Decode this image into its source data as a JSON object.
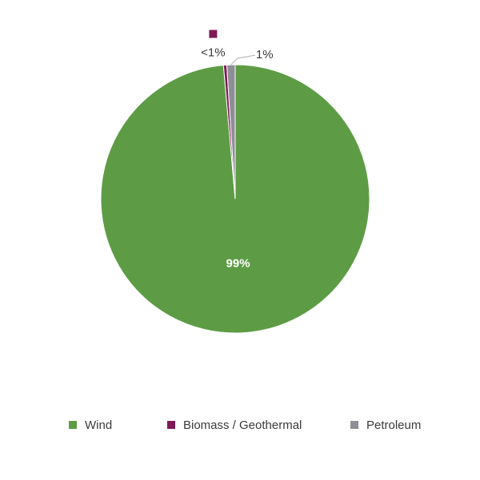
{
  "chart_data": {
    "type": "pie",
    "categories": [
      "Wind",
      "Biomass / Geothermal",
      "Petroleum"
    ],
    "values": [
      99,
      0.4,
      1
    ],
    "data_labels": [
      "99%",
      "<1%",
      "1%"
    ],
    "colors": [
      "#5d9c45",
      "#7f1a57",
      "#8e8e96"
    ],
    "legend_position": "bottom",
    "start_angle": "top",
    "direction": "clockwise"
  }
}
